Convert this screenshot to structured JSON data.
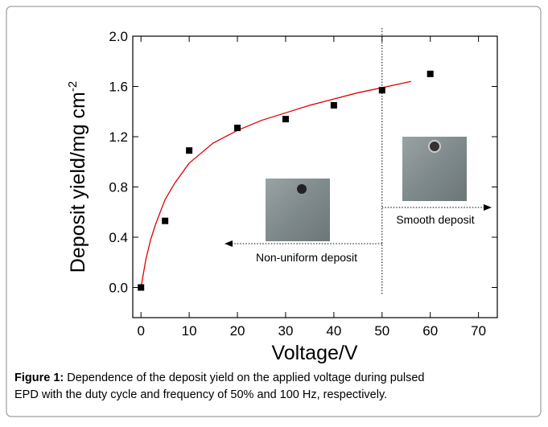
{
  "chart_data": {
    "type": "scatter",
    "xlabel": "Voltage/V",
    "ylabel": "Deposit yield/mg cm",
    "ylabel_sup": "-2",
    "xlim": [
      -1.7,
      73.9
    ],
    "ylim": [
      -0.24,
      2.0
    ],
    "xticks": [
      0,
      10,
      20,
      30,
      40,
      50,
      60,
      70
    ],
    "yticks": [
      {
        "value": 0,
        "label": "0.0"
      },
      {
        "value": 0.4,
        "label": "0.4"
      },
      {
        "value": 0.8,
        "label": "0.8"
      },
      {
        "value": 1.2,
        "label": "1.2"
      },
      {
        "value": 1.6,
        "label": "1.6"
      },
      {
        "value": 2.0,
        "label": "2.0"
      }
    ],
    "series": [
      {
        "color": "#000000",
        "x": [
          0,
          5,
          10,
          20,
          30,
          40,
          50,
          60
        ],
        "values": [
          0,
          0.53,
          1.09,
          1.27,
          1.34,
          1.45,
          1.57,
          1.7
        ]
      },
      {
        "color": "#e00000",
        "x": [
          0,
          1,
          2,
          3,
          5,
          7,
          10,
          15,
          20,
          25,
          30,
          35,
          40,
          45,
          50,
          56
        ],
        "values": [
          0,
          0.22,
          0.38,
          0.5,
          0.7,
          0.83,
          0.99,
          1.15,
          1.25,
          1.33,
          1.39,
          1.45,
          1.5,
          1.55,
          1.59,
          1.64
        ]
      }
    ],
    "annotations": [
      {
        "text": "Non-uniform deposit"
      },
      {
        "text": "Smooth deposit"
      }
    ],
    "vline": 50,
    "caption_label": "Figure 1:",
    "caption": "Dependence of the deposit yield on the applied voltage during pulsed EPD with the duty cycle and frequency of 50% and 100 Hz, respectively."
  }
}
